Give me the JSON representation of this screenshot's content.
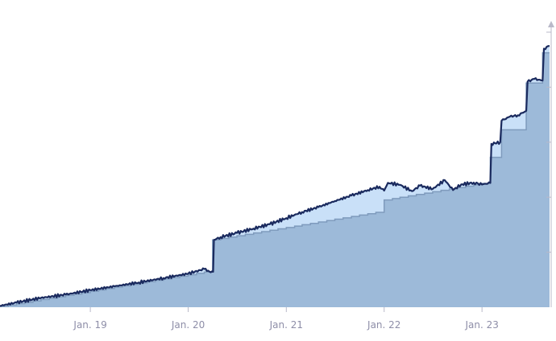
{
  "chart_data": {
    "type": "area",
    "title": "",
    "xlabel": "",
    "ylabel": "",
    "x_tick_labels": [
      "Jan. 19",
      "Jan. 20",
      "Jan. 21",
      "Jan. 22",
      "Jan. 23"
    ],
    "xlim": [
      "2018-01-29",
      "2023-09-10"
    ],
    "ylim": [
      0,
      100
    ],
    "y_grid_values": [
      20,
      40,
      60,
      80,
      100
    ],
    "grid": false,
    "legend": "none",
    "colors": {
      "step_fill": "#9dbad9",
      "step_line": "#7f9bbd",
      "band_fill": "#c9e0f8",
      "series_line": "#1a2a5e",
      "axis_ticks": "#b9b9c9",
      "tick_text": "#8e8ea8"
    },
    "series": [
      {
        "role": "cumulative-steps",
        "points": [
          [
            "2018-01-29",
            0.3
          ],
          [
            "2018-03-01",
            0.8
          ],
          [
            "2018-04-01",
            1.3
          ],
          [
            "2018-05-01",
            1.8
          ],
          [
            "2018-06-01",
            2.3
          ],
          [
            "2018-07-01",
            2.8
          ],
          [
            "2018-08-01",
            3.3
          ],
          [
            "2018-09-01",
            3.8
          ],
          [
            "2018-10-01",
            4.3
          ],
          [
            "2018-11-01",
            4.8
          ],
          [
            "2018-12-01",
            5.3
          ],
          [
            "2019-01-01",
            5.8
          ],
          [
            "2019-02-01",
            6.3
          ],
          [
            "2019-03-01",
            6.8
          ],
          [
            "2019-04-01",
            7.3
          ],
          [
            "2019-05-01",
            7.8
          ],
          [
            "2019-06-01",
            8.3
          ],
          [
            "2019-07-01",
            8.8
          ],
          [
            "2019-08-01",
            9.3
          ],
          [
            "2019-09-01",
            9.8
          ],
          [
            "2019-10-01",
            10.3
          ],
          [
            "2019-11-01",
            10.8
          ],
          [
            "2019-12-01",
            11.3
          ],
          [
            "2020-01-01",
            11.8
          ],
          [
            "2020-02-01",
            12.3
          ],
          [
            "2020-03-01",
            12.8
          ],
          [
            "2020-04-01",
            24.5
          ],
          [
            "2020-05-01",
            25.0
          ],
          [
            "2020-06-01",
            25.5
          ],
          [
            "2020-07-01",
            26.0
          ],
          [
            "2020-08-01",
            26.5
          ],
          [
            "2020-09-01",
            27.0
          ],
          [
            "2020-10-01",
            27.5
          ],
          [
            "2020-11-01",
            28.0
          ],
          [
            "2020-12-01",
            28.5
          ],
          [
            "2021-01-01",
            29.0
          ],
          [
            "2021-02-01",
            29.5
          ],
          [
            "2021-03-01",
            30.0
          ],
          [
            "2021-04-01",
            30.5
          ],
          [
            "2021-05-01",
            31.0
          ],
          [
            "2021-06-01",
            31.5
          ],
          [
            "2021-07-01",
            32.0
          ],
          [
            "2021-08-01",
            32.5
          ],
          [
            "2021-09-01",
            33.0
          ],
          [
            "2021-10-01",
            33.5
          ],
          [
            "2021-11-01",
            34.0
          ],
          [
            "2021-12-01",
            34.5
          ],
          [
            "2022-01-01",
            39.0
          ],
          [
            "2022-02-01",
            39.5
          ],
          [
            "2022-03-01",
            40.0
          ],
          [
            "2022-04-01",
            40.5
          ],
          [
            "2022-05-01",
            41.0
          ],
          [
            "2022-06-01",
            41.5
          ],
          [
            "2022-07-01",
            42.0
          ],
          [
            "2022-08-01",
            42.5
          ],
          [
            "2022-09-01",
            43.0
          ],
          [
            "2022-10-01",
            43.5
          ],
          [
            "2022-11-01",
            44.0
          ],
          [
            "2022-12-01",
            44.5
          ],
          [
            "2023-01-01",
            45.0
          ],
          [
            "2023-02-01",
            54.5
          ],
          [
            "2023-03-15",
            64.5
          ],
          [
            "2023-06-15",
            81.5
          ],
          [
            "2023-08-15",
            92.5
          ],
          [
            "2023-09-10",
            92.5
          ]
        ]
      },
      {
        "role": "value-line",
        "points": [
          [
            "2018-01-29",
            0.5
          ],
          [
            "2018-04-01",
            1.7
          ],
          [
            "2018-07-01",
            3.4
          ],
          [
            "2018-10-01",
            4.6
          ],
          [
            "2019-01-01",
            6.2
          ],
          [
            "2019-04-01",
            7.6
          ],
          [
            "2019-07-01",
            9.0
          ],
          [
            "2019-10-01",
            10.6
          ],
          [
            "2020-01-01",
            12.2
          ],
          [
            "2020-03-01",
            13.9
          ],
          [
            "2020-03-25",
            12.7
          ],
          [
            "2020-04-03",
            12.9
          ],
          [
            "2020-04-06",
            24.5
          ],
          [
            "2020-05-01",
            25.5
          ],
          [
            "2020-07-01",
            27.0
          ],
          [
            "2020-09-01",
            28.6
          ],
          [
            "2020-11-01",
            30.2
          ],
          [
            "2021-01-01",
            32.4
          ],
          [
            "2021-03-01",
            34.6
          ],
          [
            "2021-05-01",
            36.4
          ],
          [
            "2021-07-01",
            38.6
          ],
          [
            "2021-09-01",
            40.6
          ],
          [
            "2021-11-01",
            42.6
          ],
          [
            "2021-12-15",
            43.8
          ],
          [
            "2022-01-01",
            42.4
          ],
          [
            "2022-01-15",
            45.2
          ],
          [
            "2022-03-01",
            44.5
          ],
          [
            "2022-04-15",
            42.2
          ],
          [
            "2022-05-15",
            44.2
          ],
          [
            "2022-07-01",
            43.0
          ],
          [
            "2022-08-15",
            46.2
          ],
          [
            "2022-09-15",
            42.6
          ],
          [
            "2022-10-15",
            44.6
          ],
          [
            "2022-12-01",
            45.3
          ],
          [
            "2023-01-01",
            44.6
          ],
          [
            "2023-02-01",
            45.2
          ],
          [
            "2023-02-05",
            59.4
          ],
          [
            "2023-03-10",
            60.0
          ],
          [
            "2023-03-15",
            67.8
          ],
          [
            "2023-04-15",
            69.3
          ],
          [
            "2023-05-15",
            69.8
          ],
          [
            "2023-06-15",
            71.4
          ],
          [
            "2023-06-20",
            82.0
          ],
          [
            "2023-07-15",
            83.0
          ],
          [
            "2023-08-15",
            82.4
          ],
          [
            "2023-08-20",
            94.0
          ],
          [
            "2023-09-10",
            95.0
          ]
        ]
      }
    ]
  }
}
